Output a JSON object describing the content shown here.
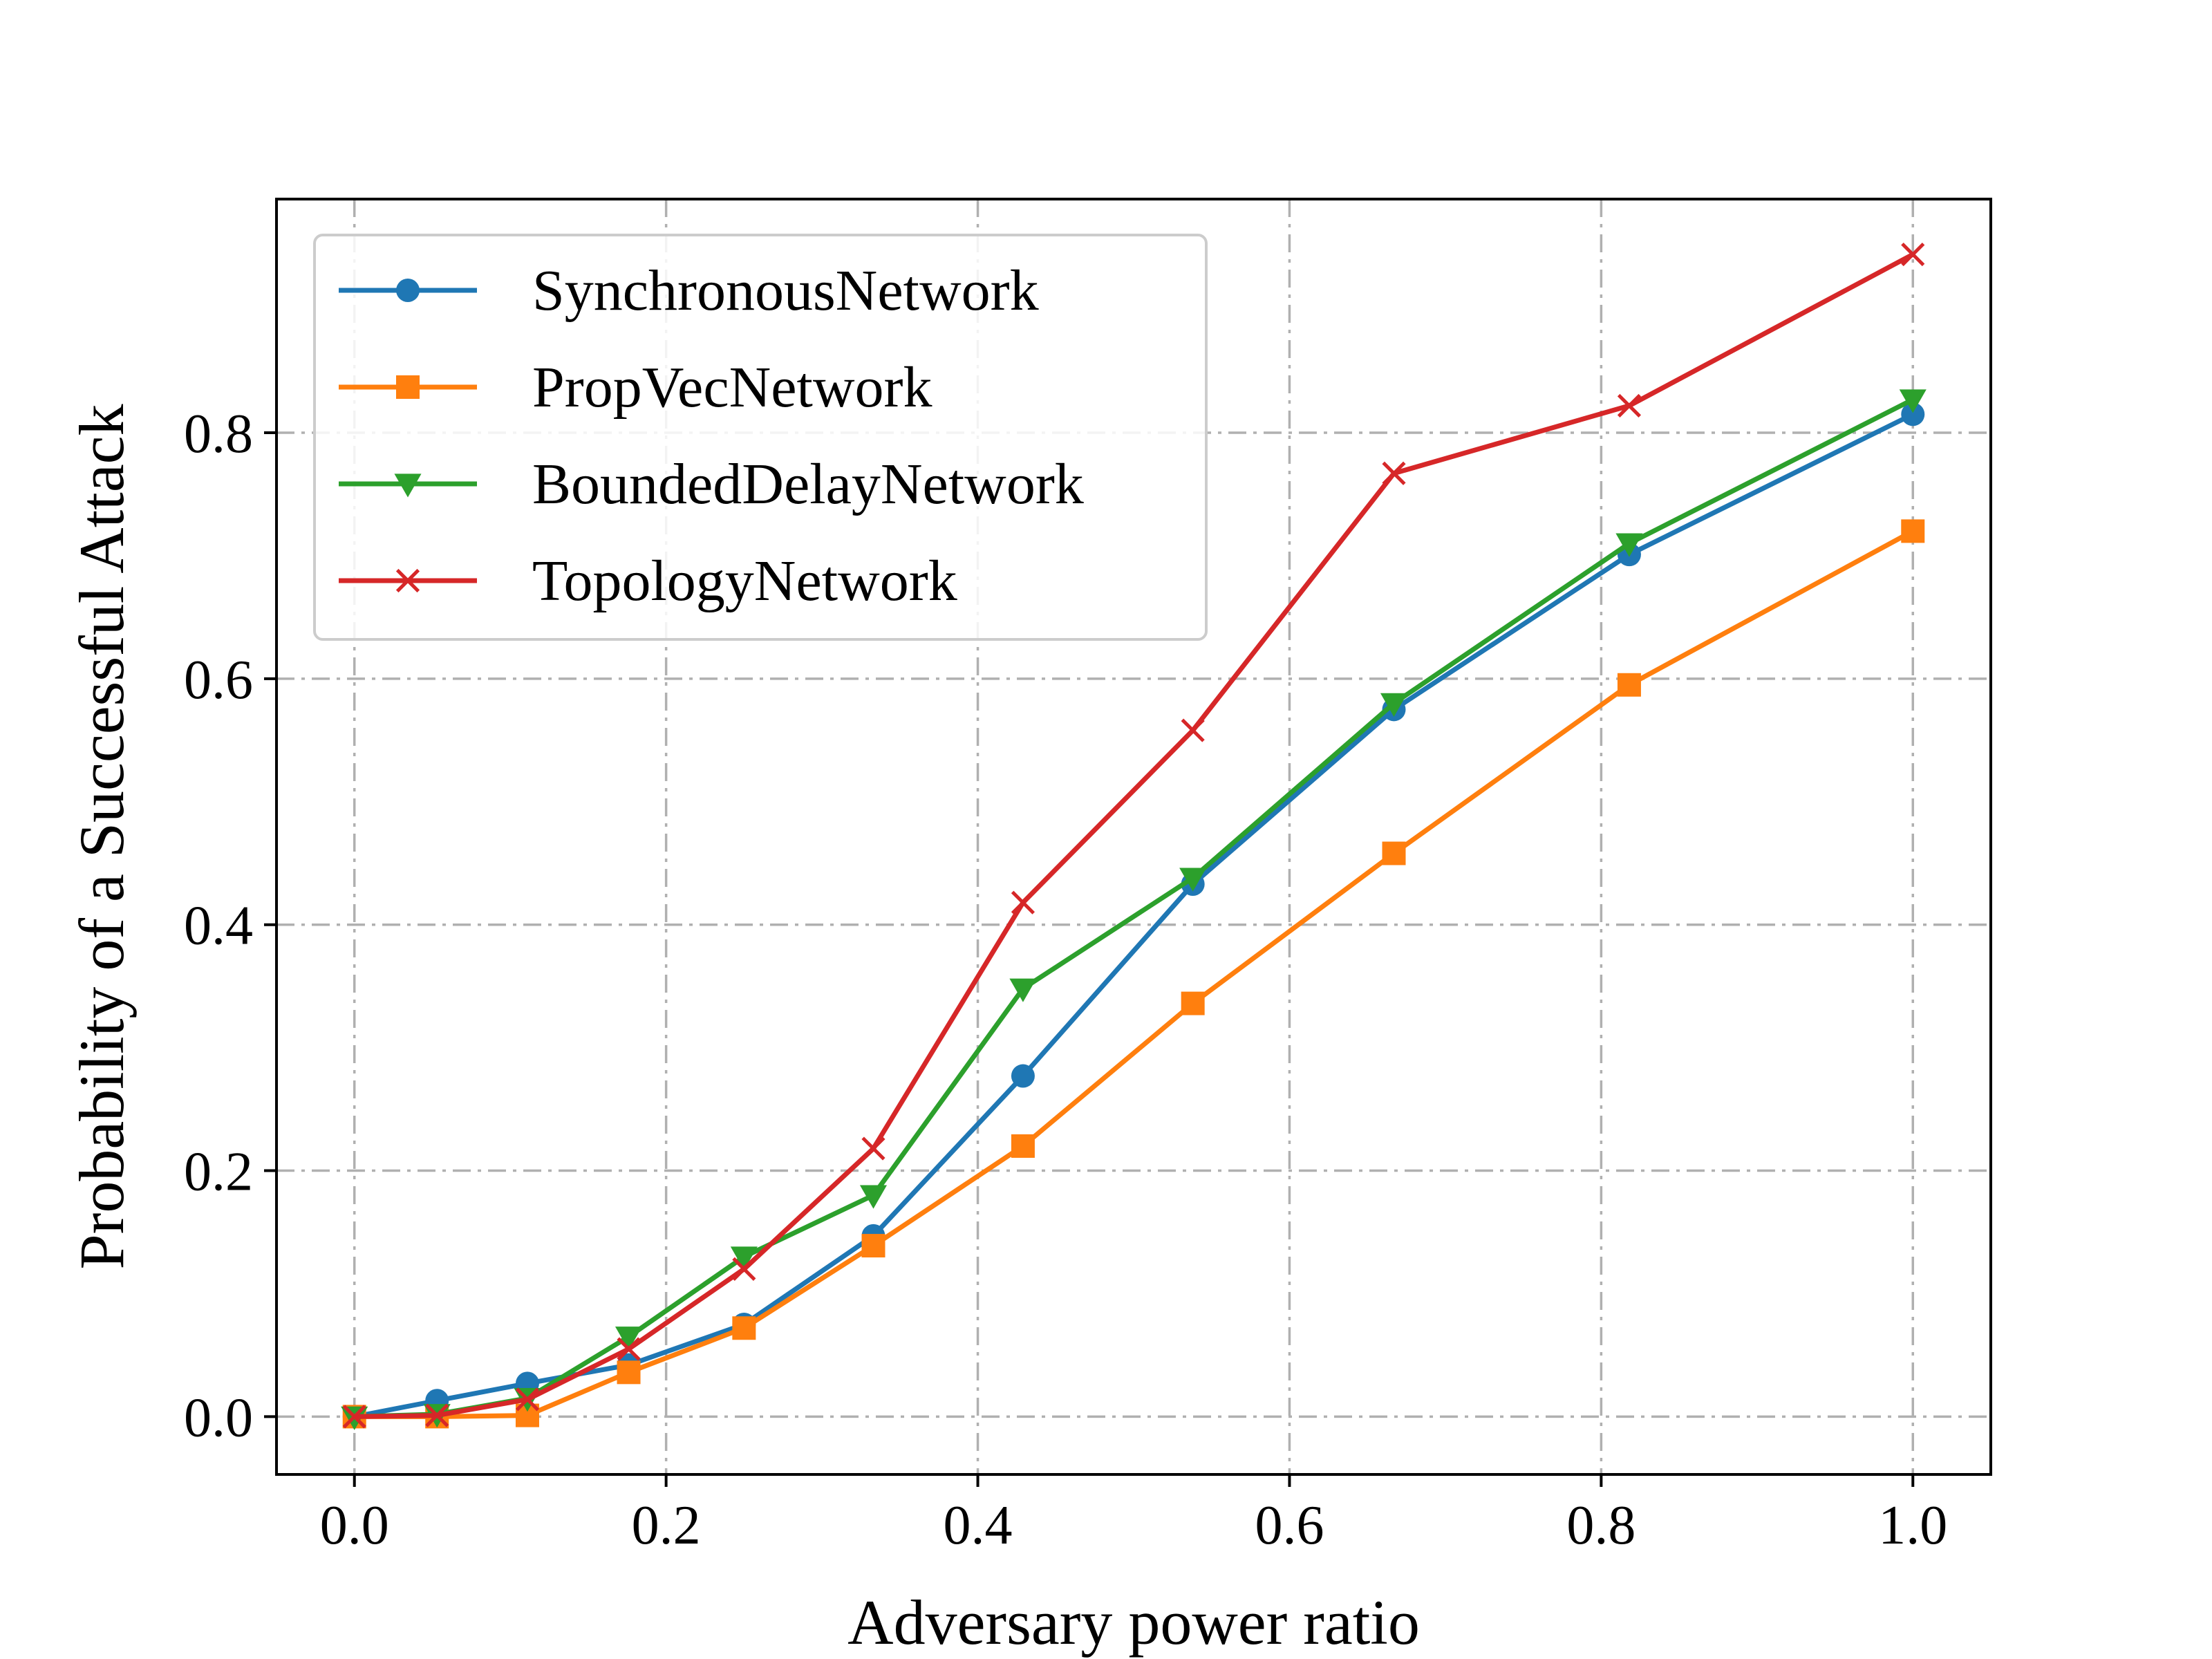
{
  "chart_data": {
    "type": "line",
    "title": "",
    "xlabel": "Adversary power ratio",
    "ylabel": "Probability of a Successful Attack",
    "xlim": [
      -0.05,
      1.05
    ],
    "ylim": [
      -0.047,
      0.99
    ],
    "xticks": [
      0.0,
      0.2,
      0.4,
      0.6,
      0.8,
      1.0
    ],
    "xtick_labels": [
      "0.0",
      "0.2",
      "0.4",
      "0.6",
      "0.8",
      "1.0"
    ],
    "yticks": [
      0.0,
      0.2,
      0.4,
      0.6,
      0.8
    ],
    "ytick_labels": [
      "0.0",
      "0.2",
      "0.4",
      "0.6",
      "0.8"
    ],
    "grid": true,
    "legend_position": "top-left",
    "x": [
      0.0,
      0.053,
      0.111,
      0.176,
      0.25,
      0.333,
      0.429,
      0.538,
      0.667,
      0.818,
      1.0
    ],
    "series": [
      {
        "name": "SynchronousNetwork",
        "color": "#1f77b4",
        "marker": "circle",
        "values": [
          0.0,
          0.013,
          0.027,
          0.042,
          0.075,
          0.147,
          0.277,
          0.433,
          0.575,
          0.701,
          0.815
        ]
      },
      {
        "name": "PropVecNetwork",
        "color": "#ff7f0e",
        "marker": "square",
        "values": [
          0.0,
          0.0,
          0.001,
          0.036,
          0.072,
          0.139,
          0.22,
          0.336,
          0.458,
          0.595,
          0.72
        ]
      },
      {
        "name": "BoundedDelayNetwork",
        "color": "#2ca02c",
        "marker": "triangle-down",
        "values": [
          0.0,
          0.002,
          0.015,
          0.065,
          0.13,
          0.18,
          0.348,
          0.438,
          0.58,
          0.71,
          0.827
        ]
      },
      {
        "name": "TopologyNetwork",
        "color": "#d62728",
        "marker": "x",
        "values": [
          0.0,
          0.001,
          0.014,
          0.055,
          0.12,
          0.218,
          0.418,
          0.558,
          0.767,
          0.822,
          0.945
        ]
      }
    ]
  }
}
